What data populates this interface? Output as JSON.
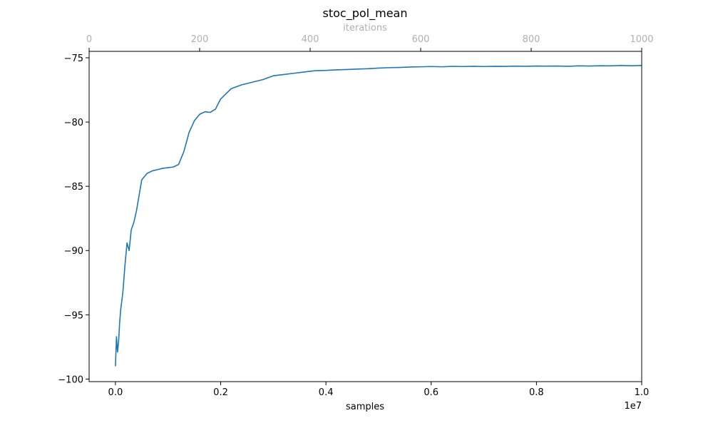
{
  "chart_data": {
    "type": "line",
    "title": "stoc_pol_mean",
    "xlabel": "samples",
    "x_offset_text": "1e7",
    "top_xlabel": "iterations",
    "ylabel": "",
    "xlim": [
      -0.05,
      1.0
    ],
    "ylim": [
      -100.2,
      -74.5
    ],
    "x_ticks": [
      0.0,
      0.2,
      0.4,
      0.6,
      0.8,
      1.0
    ],
    "x_tick_labels": [
      "0.0",
      "0.2",
      "0.4",
      "0.6",
      "0.8",
      "1.0"
    ],
    "y_ticks": [
      -100,
      -95,
      -90,
      -85,
      -80,
      -75
    ],
    "y_tick_labels": [
      "−100",
      "−95",
      "−90",
      "−85",
      "−80",
      "−75"
    ],
    "top_xlim": [
      0,
      1000
    ],
    "top_x_ticks": [
      0,
      200,
      400,
      600,
      800,
      1000
    ],
    "top_x_tick_labels": [
      "0",
      "200",
      "400",
      "600",
      "800",
      "1000"
    ],
    "grid": false,
    "colors": {
      "line": "#1f77b4",
      "top_axis": "#b0b0b0",
      "axes": "#000000"
    },
    "series": [
      {
        "x": [
          0.0,
          0.002,
          0.004,
          0.006,
          0.008,
          0.01,
          0.014,
          0.018,
          0.022,
          0.026,
          0.03,
          0.035,
          0.04,
          0.05,
          0.06,
          0.07,
          0.08,
          0.09,
          0.1,
          0.11,
          0.12,
          0.13,
          0.14,
          0.15,
          0.16,
          0.17,
          0.18,
          0.19,
          0.2,
          0.22,
          0.24,
          0.26,
          0.28,
          0.3,
          0.32,
          0.34,
          0.36,
          0.38,
          0.4,
          0.42,
          0.44,
          0.46,
          0.48,
          0.5,
          0.52,
          0.54,
          0.56,
          0.58,
          0.6,
          0.62,
          0.64,
          0.66,
          0.68,
          0.7,
          0.72,
          0.74,
          0.76,
          0.78,
          0.8,
          0.82,
          0.84,
          0.86,
          0.88,
          0.9,
          0.92,
          0.94,
          0.96,
          0.98,
          1.0
        ],
        "values": [
          -99.0,
          -96.7,
          -97.9,
          -97.1,
          -95.6,
          -94.6,
          -93.3,
          -91.2,
          -89.4,
          -90.0,
          -88.4,
          -87.8,
          -86.9,
          -84.5,
          -84.0,
          -83.8,
          -83.7,
          -83.6,
          -83.55,
          -83.5,
          -83.3,
          -82.3,
          -80.8,
          -79.9,
          -79.4,
          -79.2,
          -79.25,
          -79.0,
          -78.2,
          -77.4,
          -77.1,
          -76.9,
          -76.7,
          -76.4,
          -76.3,
          -76.2,
          -76.1,
          -76.0,
          -75.98,
          -75.94,
          -75.91,
          -75.88,
          -75.85,
          -75.8,
          -75.77,
          -75.75,
          -75.72,
          -75.7,
          -75.68,
          -75.7,
          -75.67,
          -75.68,
          -75.66,
          -75.68,
          -75.66,
          -75.67,
          -75.65,
          -75.66,
          -75.64,
          -75.65,
          -75.64,
          -75.66,
          -75.63,
          -75.64,
          -75.62,
          -75.63,
          -75.6,
          -75.62,
          -75.6
        ]
      }
    ]
  }
}
